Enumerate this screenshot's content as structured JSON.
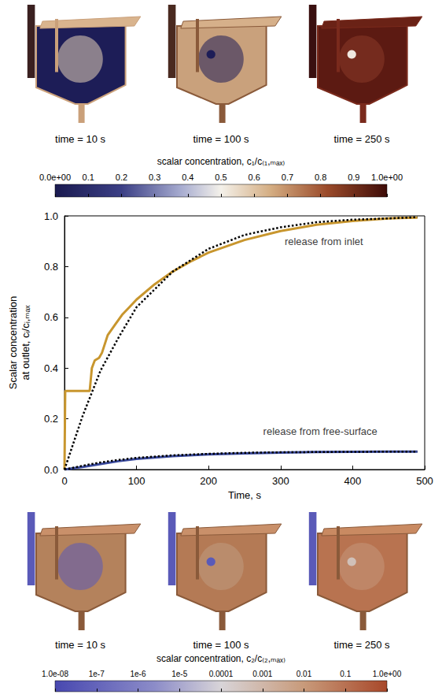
{
  "top_row": {
    "captions": [
      "time = 10 s",
      "time = 100 s",
      "time = 250 s"
    ],
    "colorbar": {
      "title": "scalar concentration, c₁/c₍₁,ₘₐₓ₎",
      "range": [
        0,
        1
      ],
      "ticks": [
        {
          "value": 0,
          "label": "0.0e+00"
        },
        0.1,
        0.2,
        0.3,
        0.4,
        0.5,
        0.6,
        0.7,
        0.8,
        0.9,
        {
          "value": 1,
          "label": "1.0e+00"
        }
      ]
    }
  },
  "chart_data": {
    "type": "line",
    "xlabel": "Time, s",
    "ylabel": "Scalar concentration at outlet, cᵢ/cᵢ,ₘₐₓ",
    "xlim": [
      0,
      500
    ],
    "xticks": [
      0,
      100,
      200,
      300,
      400,
      500
    ],
    "ylim": [
      0,
      1
    ],
    "yticks": [
      {
        "value": 0,
        "label": "0.0"
      },
      {
        "value": 0.2,
        "label": "0.2"
      },
      {
        "value": 0.4,
        "label": "0.4"
      },
      {
        "value": 0.6,
        "label": "0.6"
      },
      {
        "value": 0.8,
        "label": "0.8"
      },
      {
        "value": 1,
        "label": "1.0"
      }
    ],
    "grid": false,
    "series": [
      {
        "color": "#c8962e",
        "line_style": "solid",
        "x": [
          0,
          1,
          5,
          35,
          38,
          42,
          48,
          52,
          60,
          70,
          80,
          90,
          100,
          125,
          150,
          175,
          200,
          250,
          300,
          350,
          400,
          450,
          490
        ],
        "values": [
          0,
          0.31,
          0.31,
          0.31,
          0.4,
          0.43,
          0.44,
          0.46,
          0.53,
          0.57,
          0.61,
          0.64,
          0.67,
          0.73,
          0.78,
          0.82,
          0.855,
          0.905,
          0.94,
          0.965,
          0.98,
          0.99,
          0.993
        ]
      },
      {
        "color": "#000000",
        "line_style": "dotted",
        "x": [
          0,
          25,
          50,
          75,
          100,
          125,
          150,
          200,
          250,
          300,
          350,
          400,
          450,
          490
        ],
        "values": [
          0,
          0.21,
          0.39,
          0.52,
          0.64,
          0.71,
          0.78,
          0.87,
          0.925,
          0.955,
          0.975,
          0.985,
          0.99,
          0.995
        ]
      },
      {
        "color": "#3a4a9e",
        "line_style": "solid",
        "x": [
          0,
          25,
          50,
          75,
          100,
          150,
          200,
          250,
          300,
          350,
          400,
          450,
          490
        ],
        "values": [
          0,
          0.01,
          0.022,
          0.033,
          0.042,
          0.053,
          0.06,
          0.064,
          0.067,
          0.069,
          0.07,
          0.071,
          0.071
        ]
      },
      {
        "color": "#000000",
        "line_style": "dotted",
        "x": [
          0,
          25,
          50,
          75,
          100,
          150,
          200,
          250,
          300,
          400,
          490
        ],
        "values": [
          0,
          0.015,
          0.028,
          0.038,
          0.046,
          0.056,
          0.062,
          0.066,
          0.068,
          0.07,
          0.071
        ]
      }
    ],
    "annotations": [
      {
        "text": "release from inlet",
        "x": 360,
        "y": 0.9
      },
      {
        "text": "release from free-surface",
        "x": 355,
        "y": 0.15
      }
    ]
  },
  "bottom_row": {
    "captions": [
      "time = 10 s",
      "time = 100 s",
      "time = 250 s"
    ],
    "colorbar": {
      "title": "scalar concentration, c₂/c₍₂,ₘₐₓ₎",
      "range": [
        1e-08,
        1
      ],
      "log": true,
      "ticks": [
        {
          "value": 1e-08,
          "label": "1.0e-08"
        },
        {
          "value": 1e-07,
          "label": "1e-7"
        },
        {
          "value": 1e-06,
          "label": "1e-6"
        },
        {
          "value": 1e-05,
          "label": "1e-5"
        },
        0.0001,
        0.001,
        0.01,
        0.1,
        {
          "value": 1,
          "label": "1.0e+00"
        }
      ]
    }
  }
}
